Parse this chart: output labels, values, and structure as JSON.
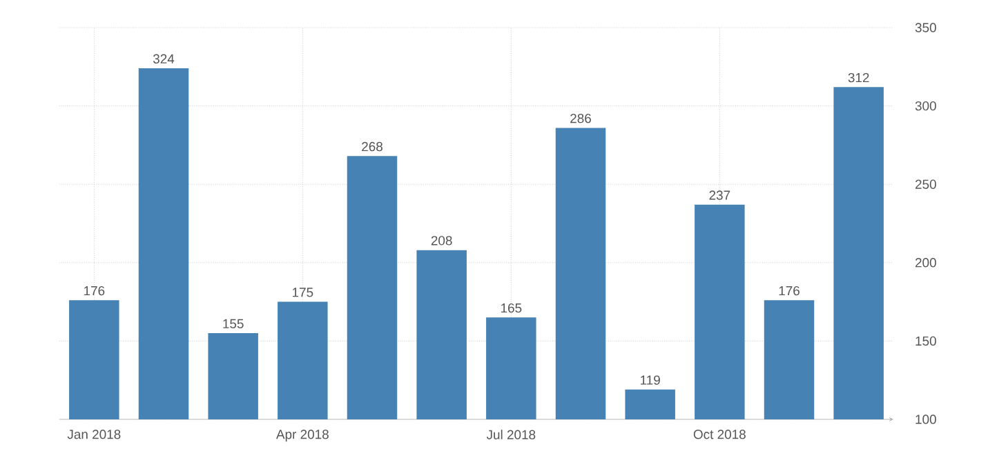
{
  "chart_data": {
    "type": "bar",
    "categories": [
      "Jan 2018",
      null,
      null,
      "Apr 2018",
      null,
      null,
      "Jul 2018",
      null,
      null,
      "Oct 2018",
      null,
      null
    ],
    "values": [
      176,
      324,
      155,
      175,
      268,
      208,
      165,
      286,
      119,
      237,
      176,
      312
    ],
    "color": "#4682b4",
    "ylim": [
      100,
      350
    ],
    "yticks": [
      100,
      150,
      200,
      250,
      300,
      350
    ],
    "grid": true,
    "data_labels": true
  }
}
